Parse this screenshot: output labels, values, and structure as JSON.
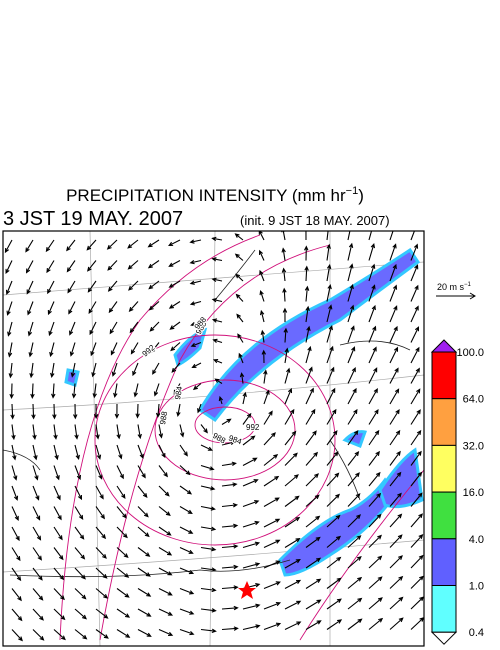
{
  "title": {
    "text": "PRECIPITATION INTENSITY (mm hr",
    "superscript": "−1",
    "close": ")"
  },
  "valid_time": "3 JST 19 MAY. 2007",
  "init_time": "(init. 9 JST 18 MAY. 2007)",
  "vector_scale": {
    "text": "20 m s",
    "superscript": "−1"
  },
  "colorbar": {
    "labels": [
      "100.0",
      "64.0",
      "32.0",
      "16.0",
      "4.0",
      "1.0",
      "0.4"
    ],
    "colors": [
      "#a020f0",
      "#ff0000",
      "#ffa040",
      "#ffff60",
      "#40e040",
      "#6060ff",
      "#60ffff",
      "#ffffff"
    ]
  },
  "contour_labels": [
    "992",
    "988",
    "984",
    "988",
    "988",
    "984",
    "992",
    "988"
  ]
}
